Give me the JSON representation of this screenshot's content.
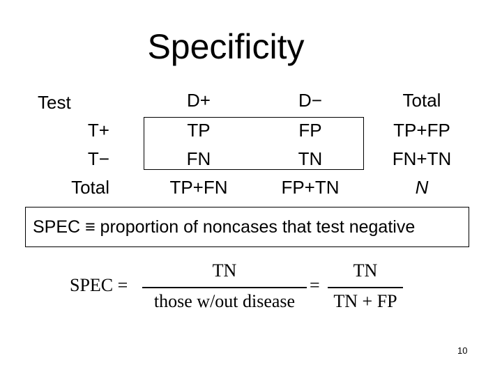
{
  "slide": {
    "title": "Specificity",
    "page_number": "10"
  },
  "table": {
    "corner_label": "Test",
    "col_headers": [
      "D+",
      "D−",
      "Total"
    ],
    "row_labels": [
      "T+",
      "T−",
      "Total"
    ],
    "cells": [
      [
        "TP",
        "FP",
        "TP+FP"
      ],
      [
        "FN",
        "TN",
        "FN+TN"
      ],
      [
        "TP+FN",
        "FP+TN",
        "N"
      ]
    ]
  },
  "definition": "SPEC ≡ proportion of noncases that test negative",
  "formula": {
    "lhs": "SPEC =",
    "frac1_num": "TN",
    "frac1_den": "those w/out disease",
    "equals": "=",
    "frac2_num": "TN",
    "frac2_den": "TN + FP"
  }
}
